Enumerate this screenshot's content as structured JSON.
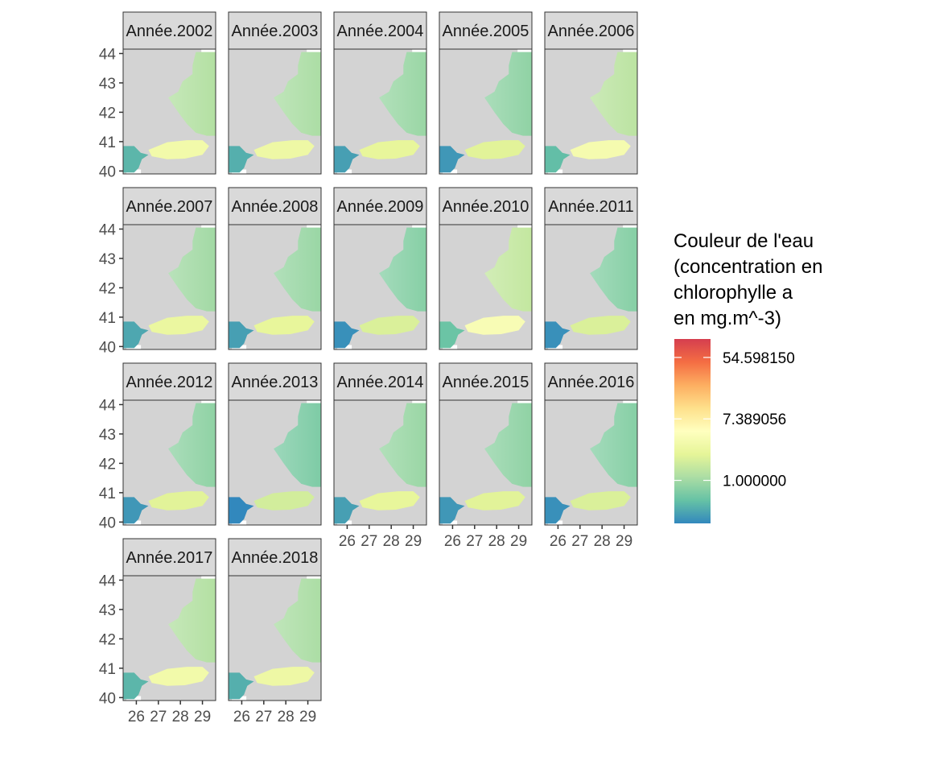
{
  "chart_data": {
    "type": "heatmap",
    "subtype": "faceted raster maps",
    "facets": [
      "Année.2002",
      "Année.2003",
      "Année.2004",
      "Année.2005",
      "Année.2006",
      "Année.2007",
      "Année.2008",
      "Année.2009",
      "Année.2010",
      "Année.2011",
      "Année.2012",
      "Année.2013",
      "Année.2014",
      "Année.2015",
      "Année.2016",
      "Année.2017",
      "Année.2018"
    ],
    "facet_columns": 5,
    "x_ticks": [
      "26",
      "27",
      "28",
      "29"
    ],
    "x_tick_values": [
      26,
      27,
      28,
      29
    ],
    "xlim": [
      25.4,
      29.6
    ],
    "y_ticks": [
      "40",
      "41",
      "42",
      "43",
      "44"
    ],
    "y_tick_values": [
      40,
      41,
      42,
      43,
      44
    ],
    "ylim": [
      39.9,
      44.15
    ],
    "grid": false,
    "panel_background": "#d3d3d3",
    "legend": {
      "title_lines": [
        "Couleur de l'eau",
        "(concentration en",
        "chlorophylle a",
        "en mg.m^-3)"
      ],
      "labels": [
        "54.598150",
        "7.389056",
        "1.000000"
      ],
      "label_values": [
        54.59815,
        7.389056,
        1.0
      ],
      "scale": "log",
      "log_range": [
        -1.4,
        4.6
      ],
      "placement": "right",
      "colors": [
        "#3288bd",
        "#66c2a5",
        "#abdda4",
        "#e6f598",
        "#ffffbf",
        "#fee08b",
        "#fdae61",
        "#f46d43",
        "#d53e4f"
      ]
    },
    "facet_mean_log_chl": [
      0.2,
      0.1,
      -0.1,
      -0.2,
      0.3,
      0.0,
      -0.1,
      -0.3,
      0.4,
      -0.3,
      -0.2,
      -0.4,
      -0.1,
      -0.2,
      -0.3,
      0.2,
      0.1
    ]
  }
}
